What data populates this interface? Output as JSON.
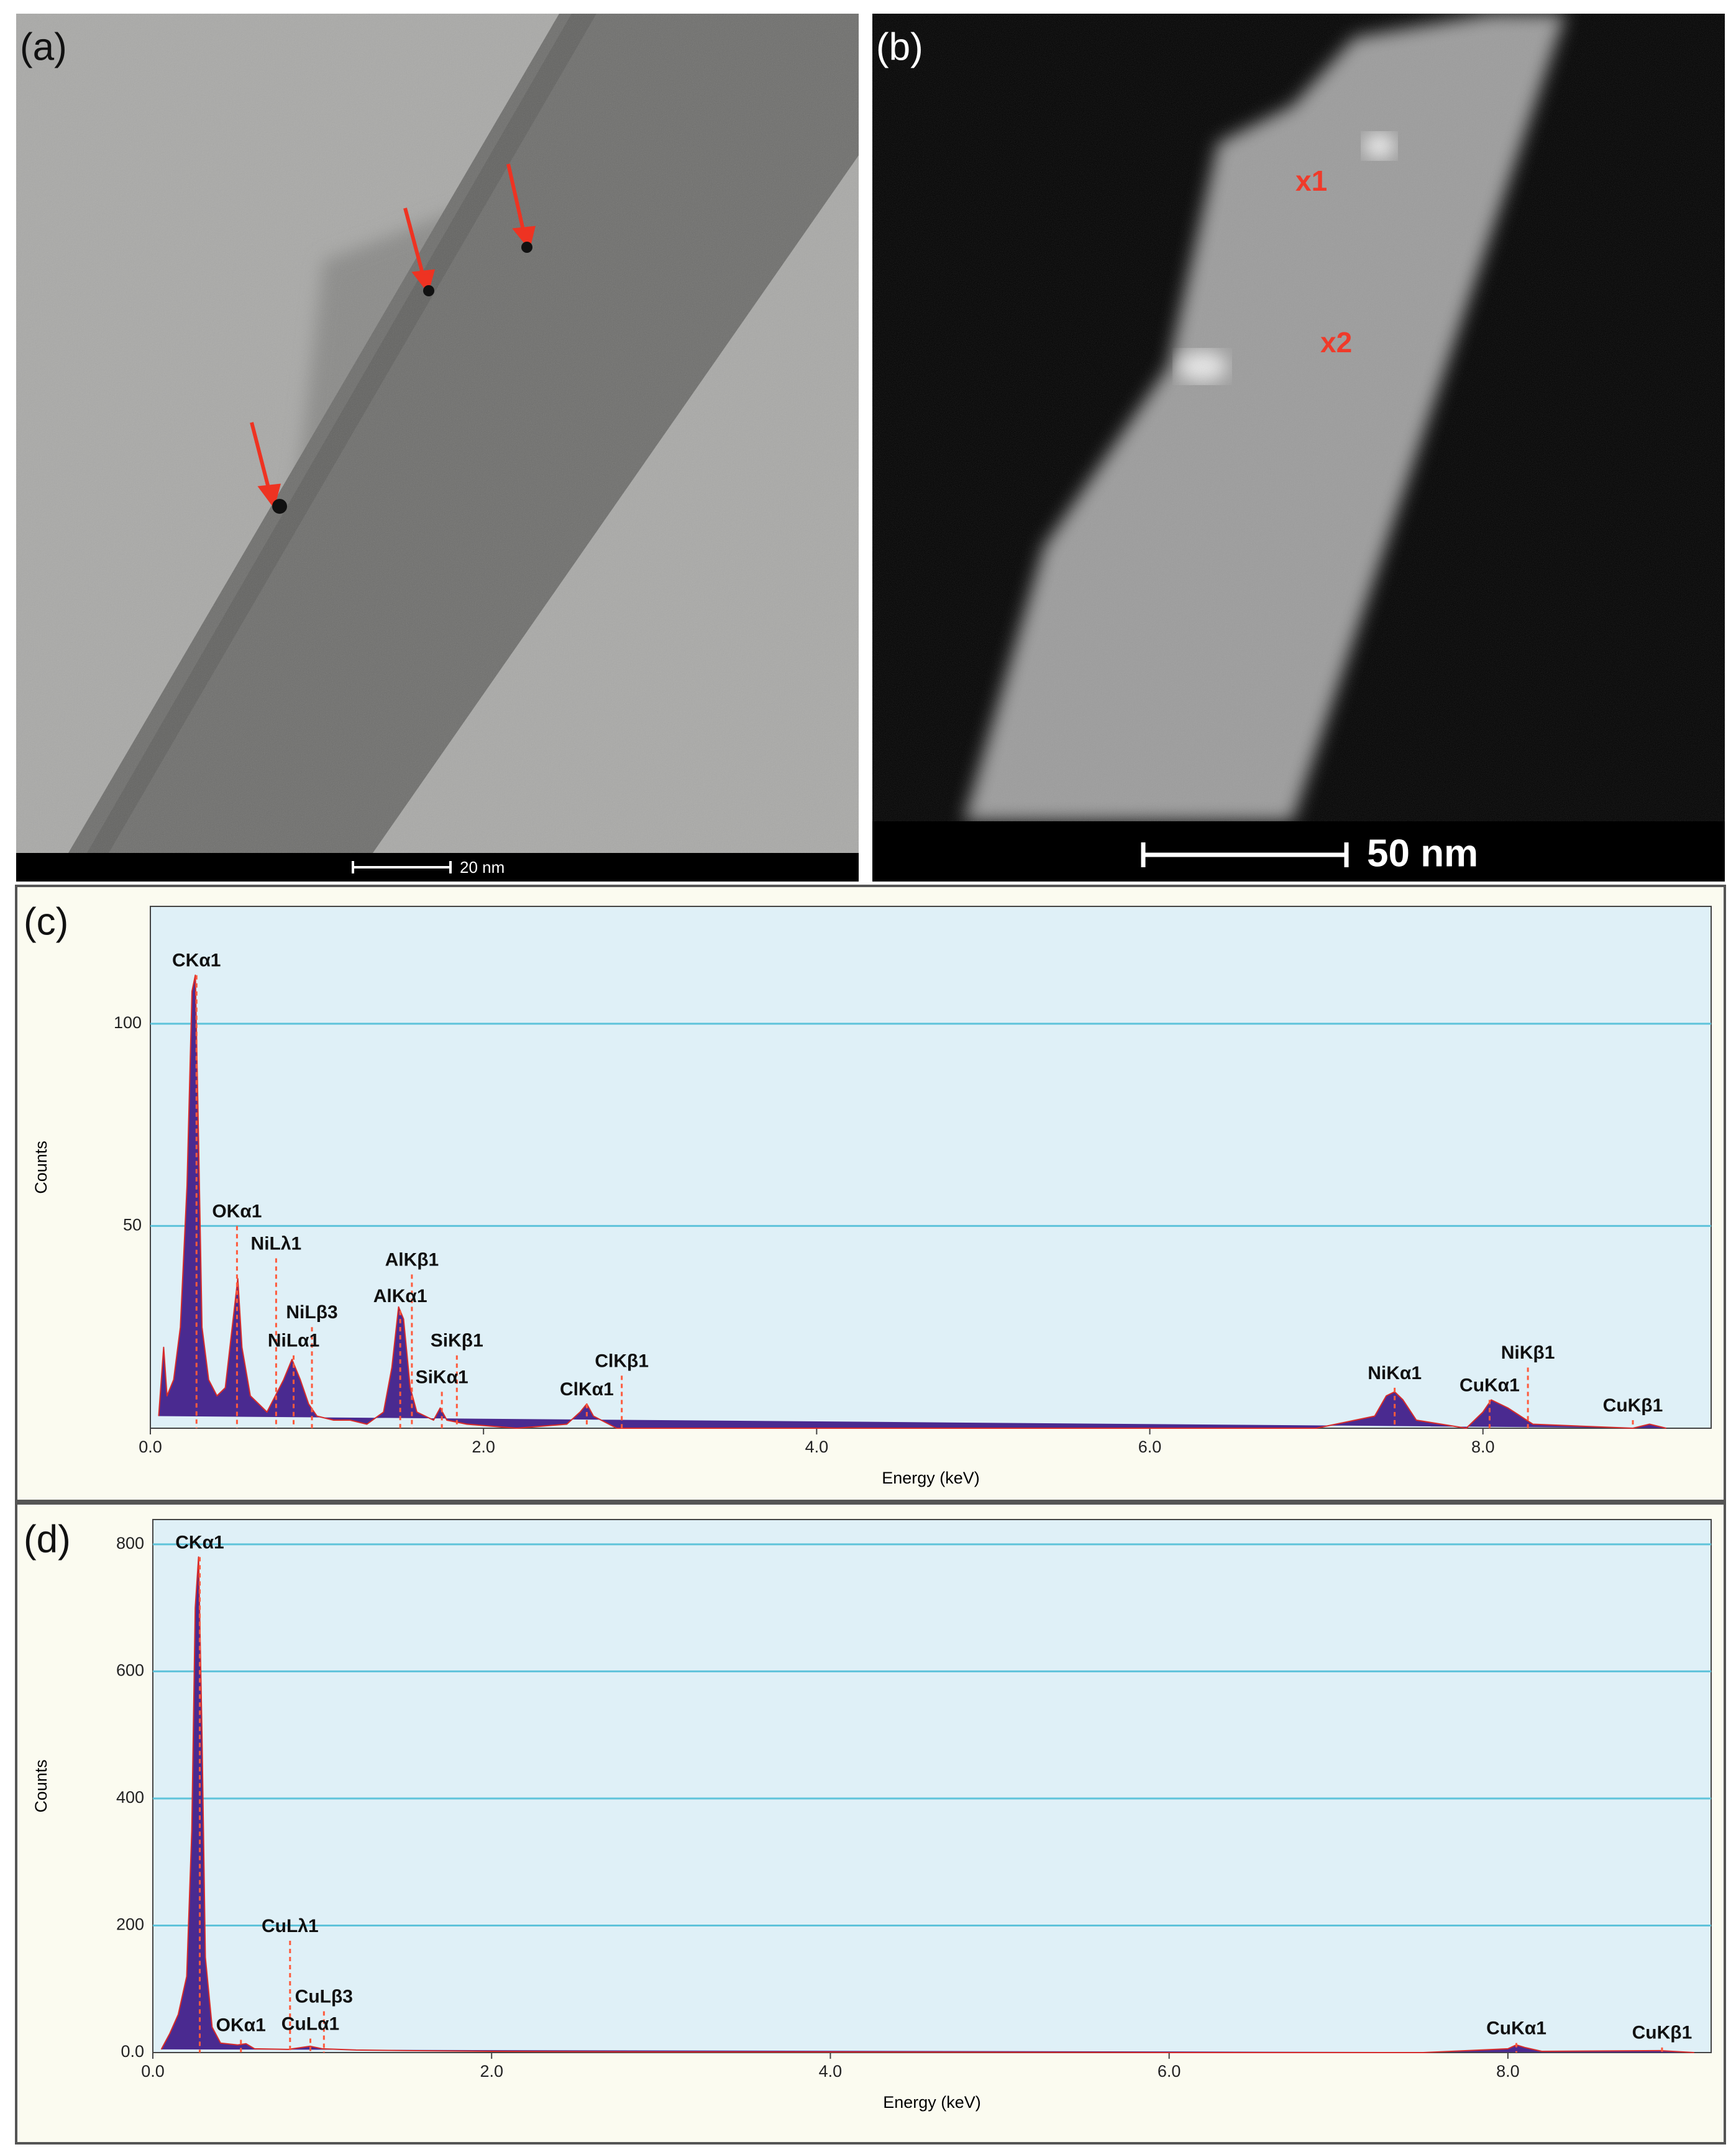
{
  "panels": [
    {
      "label": "(a)",
      "scale_bar": "20 nm"
    },
    {
      "label": "(b)",
      "scale_bar": "50 nm",
      "markers": [
        "x1",
        "x2"
      ]
    }
  ],
  "chart_data": [
    {
      "type": "area",
      "panel_label": "(c)",
      "x_label": "Energy (keV)",
      "y_label": "Counts",
      "color": "#4a2a90",
      "edge_color": "#d62b2b",
      "peak_color": "#ff5a3c",
      "grid": true,
      "xlim": [
        0,
        9.37
      ],
      "ylim": [
        0,
        129
      ],
      "xticks": [
        {
          "value": 0,
          "label": "0.0"
        },
        {
          "value": 2,
          "label": "2.0"
        },
        {
          "value": 4,
          "label": "4.0"
        },
        {
          "value": 6,
          "label": "6.0"
        },
        {
          "value": 8,
          "label": "8.0"
        }
      ],
      "yticks": [
        50,
        100
      ],
      "x": [
        0.05,
        0.08,
        0.1,
        0.14,
        0.18,
        0.22,
        0.25,
        0.27,
        0.29,
        0.31,
        0.35,
        0.4,
        0.45,
        0.5,
        0.525,
        0.55,
        0.6,
        0.65,
        0.7,
        0.75,
        0.8,
        0.85,
        0.9,
        0.95,
        1.0,
        1.1,
        1.2,
        1.3,
        1.4,
        1.45,
        1.49,
        1.52,
        1.56,
        1.6,
        1.7,
        1.74,
        1.78,
        1.9,
        2.2,
        2.5,
        2.58,
        2.62,
        2.66,
        2.8,
        3.5,
        4.5,
        5.5,
        6.4,
        7.0,
        7.35,
        7.42,
        7.47,
        7.52,
        7.6,
        7.9,
        8.0,
        8.05,
        8.1,
        8.15,
        8.3,
        8.9,
        9.0,
        9.1
      ],
      "values": [
        3,
        20,
        8,
        12,
        25,
        60,
        108,
        112,
        70,
        25,
        12,
        8,
        10,
        28,
        37,
        20,
        8,
        6,
        4,
        8,
        12,
        17,
        12,
        6,
        3,
        2,
        2,
        1,
        4,
        15,
        30,
        27,
        10,
        4,
        2,
        5,
        2,
        1,
        0,
        1,
        4,
        6,
        3,
        0,
        0,
        0,
        0,
        0,
        0,
        3,
        8,
        9,
        7,
        2,
        0,
        4,
        7,
        6,
        5,
        1,
        0,
        1,
        0
      ],
      "annotations": [
        {
          "label": "CKα1",
          "x": 0.277,
          "y": 112
        },
        {
          "label": "OKα1",
          "x": 0.52,
          "y": 50
        },
        {
          "label": "NiLλ1",
          "x": 0.755,
          "y": 42
        },
        {
          "label": "NiLβ3",
          "x": 0.97,
          "y": 25
        },
        {
          "label": "NiLα1",
          "x": 0.86,
          "y": 18
        },
        {
          "label": "AlKβ1",
          "x": 1.57,
          "y": 38
        },
        {
          "label": "AlKα1",
          "x": 1.5,
          "y": 29
        },
        {
          "label": "SiKβ1",
          "x": 1.84,
          "y": 18
        },
        {
          "label": "SiKα1",
          "x": 1.75,
          "y": 9
        },
        {
          "label": "ClKβ1",
          "x": 2.83,
          "y": 13
        },
        {
          "label": "ClKα1",
          "x": 2.62,
          "y": 6
        },
        {
          "label": "NiKα1",
          "x": 7.47,
          "y": 10
        },
        {
          "label": "CuKα1",
          "x": 8.04,
          "y": 7
        },
        {
          "label": "NiKβ1",
          "x": 8.27,
          "y": 15
        },
        {
          "label": "CuKβ1",
          "x": 8.9,
          "y": 2
        }
      ]
    },
    {
      "type": "area",
      "panel_label": "(d)",
      "x_label": "Energy (keV)",
      "y_label": "Counts",
      "color": "#4a2a90",
      "edge_color": "#d62b2b",
      "peak_color": "#ff5a3c",
      "grid": true,
      "xlim": [
        0,
        9.2
      ],
      "ylim": [
        0,
        839
      ],
      "xticks": [
        {
          "value": 0,
          "label": "0.0"
        },
        {
          "value": 2,
          "label": "2.0"
        },
        {
          "value": 4,
          "label": "4.0"
        },
        {
          "value": 6,
          "label": "6.0"
        },
        {
          "value": 8,
          "label": "8.0"
        }
      ],
      "yticks": [
        {
          "value": 0,
          "label": "0.0"
        },
        200,
        400,
        600,
        800
      ],
      "x": [
        0.05,
        0.1,
        0.15,
        0.2,
        0.23,
        0.25,
        0.27,
        0.29,
        0.31,
        0.35,
        0.4,
        0.5,
        0.55,
        0.6,
        0.8,
        0.93,
        1.0,
        1.2,
        1.5,
        2.0,
        3.0,
        4.0,
        6.0,
        7.5,
        8.0,
        8.05,
        8.1,
        8.2,
        8.9,
        9.1
      ],
      "values": [
        5,
        30,
        60,
        120,
        350,
        700,
        780,
        500,
        150,
        40,
        15,
        12,
        14,
        6,
        5,
        10,
        6,
        4,
        3,
        2,
        1,
        1,
        0,
        0,
        6,
        12,
        8,
        2,
        3,
        0
      ],
      "annotations": [
        {
          "label": "CKα1",
          "x": 0.277,
          "y": 780
        },
        {
          "label": "OKα1",
          "x": 0.52,
          "y": 20
        },
        {
          "label": "CuLλ1",
          "x": 0.81,
          "y": 176
        },
        {
          "label": "CuLβ3",
          "x": 1.01,
          "y": 65
        },
        {
          "label": "CuLα1",
          "x": 0.93,
          "y": 22
        },
        {
          "label": "CuKα1",
          "x": 8.05,
          "y": 15
        },
        {
          "label": "CuKβ1",
          "x": 8.91,
          "y": 8
        }
      ]
    }
  ]
}
